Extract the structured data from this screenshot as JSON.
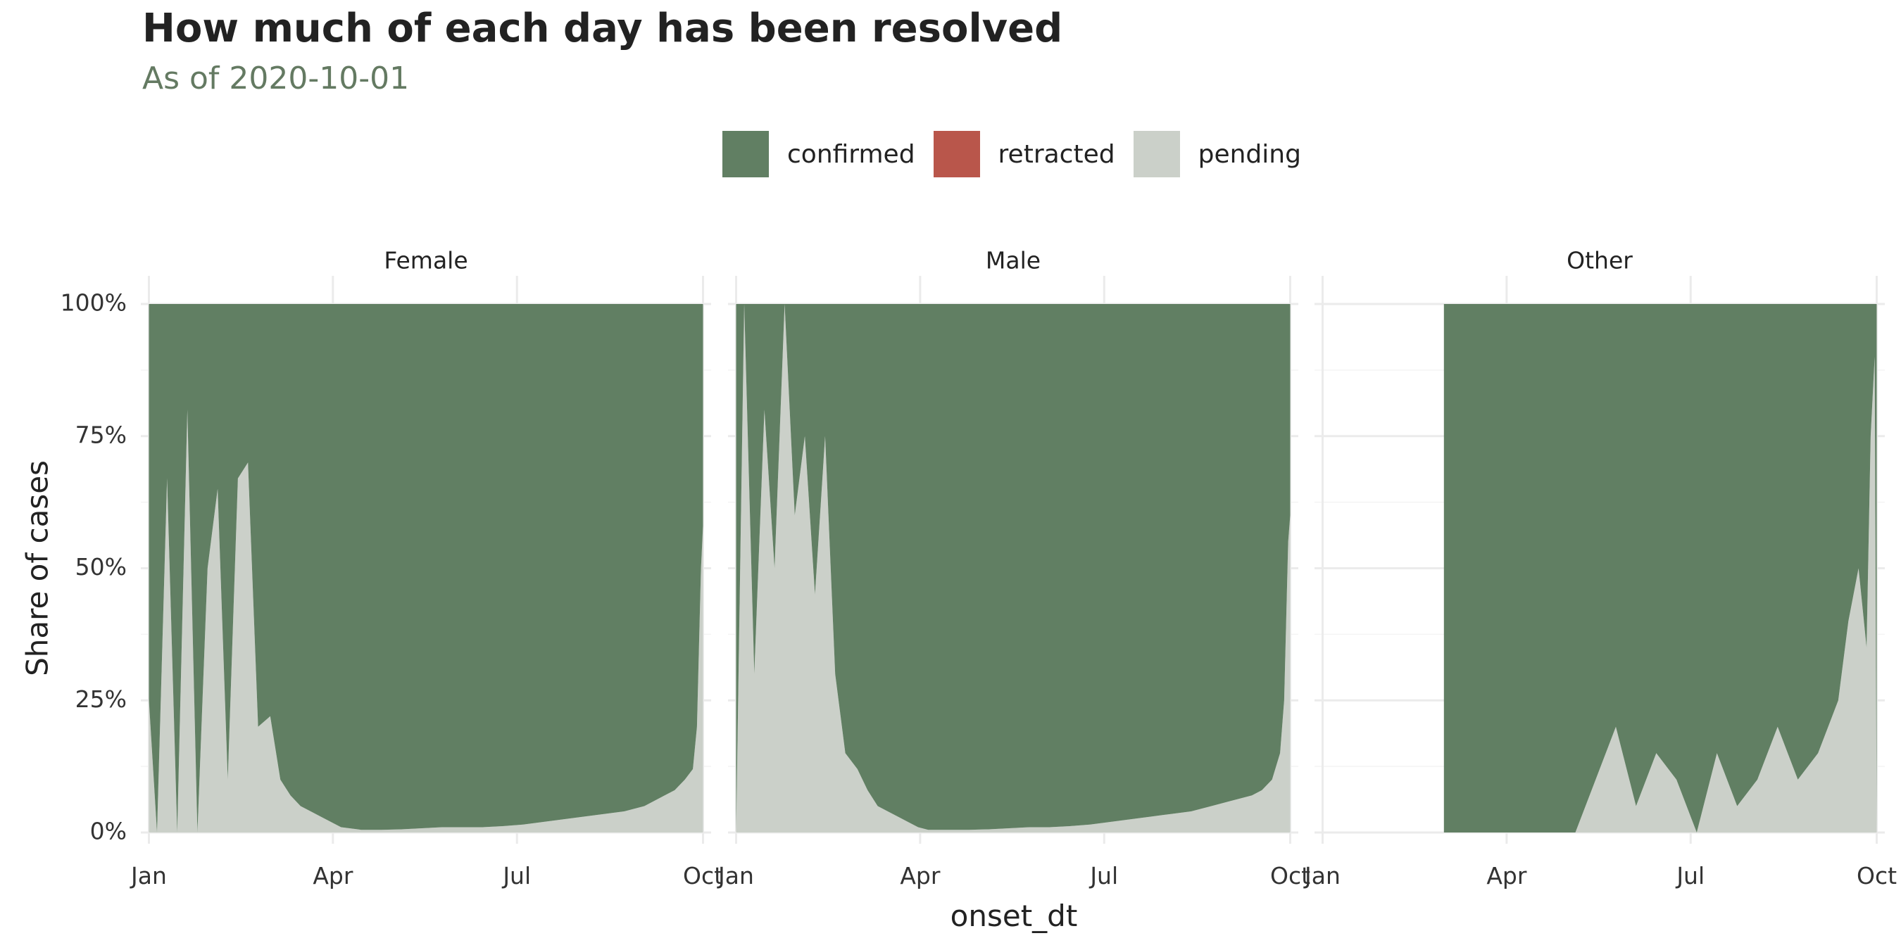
{
  "title": "How much of each day has been resolved",
  "subtitle": "As of 2020-10-01",
  "legend": [
    {
      "label": "confirmed",
      "color": "#617f63"
    },
    {
      "label": "retracted",
      "color": "#b9564b"
    },
    {
      "label": "pending",
      "color": "#cbd0c9"
    }
  ],
  "chart_data": {
    "type": "area",
    "stacked": true,
    "stack_order": [
      "pending",
      "retracted",
      "confirmed"
    ],
    "x_label": "onset_dt",
    "y_label": "Share of cases",
    "x_ticks": [
      "Jan",
      "Apr",
      "Jul",
      "Oct"
    ],
    "y_ticks": [
      "0%",
      "25%",
      "50%",
      "75%",
      "100%"
    ],
    "ylim": [
      0,
      1
    ],
    "xlim": [
      "2019-12-28",
      "2020-10-05"
    ],
    "grid": true,
    "legend_position": "top",
    "x_dates": [
      "2020-01-01",
      "2020-01-05",
      "2020-01-10",
      "2020-01-15",
      "2020-01-20",
      "2020-01-25",
      "2020-01-30",
      "2020-02-04",
      "2020-02-09",
      "2020-02-14",
      "2020-02-19",
      "2020-02-24",
      "2020-03-01",
      "2020-03-06",
      "2020-03-11",
      "2020-03-16",
      "2020-03-21",
      "2020-03-26",
      "2020-03-31",
      "2020-04-05",
      "2020-04-15",
      "2020-04-25",
      "2020-05-05",
      "2020-05-15",
      "2020-05-25",
      "2020-06-04",
      "2020-06-14",
      "2020-06-24",
      "2020-07-04",
      "2020-07-14",
      "2020-07-24",
      "2020-08-03",
      "2020-08-13",
      "2020-08-23",
      "2020-09-02",
      "2020-09-12",
      "2020-09-17",
      "2020-09-22",
      "2020-09-26",
      "2020-09-28",
      "2020-09-30",
      "2020-10-01"
    ],
    "facets": [
      {
        "label": "Female",
        "series": [
          {
            "name": "pending",
            "values": [
              0.25,
              0.0,
              0.67,
              0.0,
              0.8,
              0.0,
              0.5,
              0.65,
              0.1,
              0.67,
              0.7,
              0.2,
              0.22,
              0.1,
              0.07,
              0.05,
              0.04,
              0.03,
              0.02,
              0.01,
              0.005,
              0.005,
              0.006,
              0.008,
              0.01,
              0.01,
              0.01,
              0.012,
              0.015,
              0.02,
              0.025,
              0.03,
              0.035,
              0.04,
              0.05,
              0.07,
              0.08,
              0.1,
              0.12,
              0.2,
              0.5,
              0.58
            ]
          },
          {
            "name": "retracted",
            "values": [
              0,
              0,
              0,
              0,
              0,
              0,
              0,
              0,
              0,
              0,
              0,
              0,
              0,
              0,
              0,
              0,
              0,
              0,
              0,
              0,
              0,
              0,
              0,
              0,
              0,
              0,
              0,
              0,
              0,
              0,
              0,
              0,
              0,
              0,
              0,
              0,
              0,
              0,
              0,
              0,
              0,
              0
            ]
          },
          {
            "name": "confirmed",
            "values": [
              0.75,
              1.0,
              0.33,
              1.0,
              0.2,
              1.0,
              0.5,
              0.35,
              0.9,
              0.33,
              0.3,
              0.8,
              0.78,
              0.9,
              0.93,
              0.95,
              0.96,
              0.97,
              0.98,
              0.99,
              0.995,
              0.995,
              0.994,
              0.992,
              0.99,
              0.99,
              0.99,
              0.988,
              0.985,
              0.98,
              0.975,
              0.97,
              0.965,
              0.96,
              0.95,
              0.93,
              0.92,
              0.9,
              0.88,
              0.8,
              0.5,
              0.42
            ]
          }
        ]
      },
      {
        "label": "Male",
        "series": [
          {
            "name": "pending",
            "values": [
              0.0,
              1.0,
              0.3,
              0.8,
              0.5,
              1.0,
              0.6,
              0.75,
              0.45,
              0.75,
              0.3,
              0.15,
              0.12,
              0.08,
              0.05,
              0.04,
              0.03,
              0.02,
              0.01,
              0.005,
              0.005,
              0.005,
              0.006,
              0.008,
              0.01,
              0.01,
              0.012,
              0.015,
              0.02,
              0.025,
              0.03,
              0.035,
              0.04,
              0.05,
              0.06,
              0.07,
              0.08,
              0.1,
              0.15,
              0.25,
              0.55,
              0.6
            ]
          },
          {
            "name": "retracted",
            "values": [
              0,
              0,
              0,
              0,
              0,
              0,
              0,
              0,
              0,
              0,
              0,
              0,
              0,
              0,
              0,
              0,
              0,
              0,
              0,
              0,
              0,
              0,
              0,
              0,
              0,
              0,
              0,
              0,
              0,
              0,
              0,
              0,
              0,
              0,
              0,
              0,
              0,
              0,
              0,
              0,
              0,
              0
            ]
          },
          {
            "name": "confirmed",
            "values": [
              1.0,
              0.0,
              0.7,
              0.2,
              0.5,
              0.0,
              0.4,
              0.25,
              0.55,
              0.25,
              0.7,
              0.85,
              0.88,
              0.92,
              0.95,
              0.96,
              0.97,
              0.98,
              0.99,
              0.995,
              0.995,
              0.995,
              0.994,
              0.992,
              0.99,
              0.99,
              0.988,
              0.985,
              0.98,
              0.975,
              0.97,
              0.965,
              0.96,
              0.95,
              0.94,
              0.93,
              0.92,
              0.9,
              0.85,
              0.75,
              0.45,
              0.4
            ]
          }
        ]
      },
      {
        "label": "Other",
        "series": [
          {
            "name": "pending",
            "values": [
              null,
              null,
              null,
              null,
              null,
              null,
              null,
              null,
              null,
              null,
              null,
              null,
              0.0,
              0.0,
              0.0,
              0.0,
              0.0,
              0.0,
              0.0,
              0.0,
              0.0,
              0.0,
              0.0,
              0.1,
              0.2,
              0.05,
              0.15,
              0.1,
              0.0,
              0.15,
              0.05,
              0.1,
              0.2,
              0.1,
              0.15,
              0.25,
              0.4,
              0.5,
              0.35,
              0.75,
              0.9,
              0.0
            ]
          },
          {
            "name": "retracted",
            "values": [
              null,
              null,
              null,
              null,
              null,
              null,
              null,
              null,
              null,
              null,
              null,
              null,
              0,
              0,
              0,
              0,
              0,
              0,
              0,
              0,
              0,
              0,
              0,
              0,
              0,
              0,
              0,
              0,
              0,
              0,
              0,
              0,
              0,
              0,
              0,
              0,
              0,
              0,
              0,
              0,
              0,
              0
            ]
          },
          {
            "name": "confirmed",
            "values": [
              null,
              null,
              null,
              null,
              null,
              null,
              null,
              null,
              null,
              null,
              null,
              null,
              1.0,
              1.0,
              1.0,
              1.0,
              1.0,
              1.0,
              1.0,
              1.0,
              1.0,
              1.0,
              1.0,
              0.9,
              0.8,
              0.95,
              0.85,
              0.9,
              1.0,
              0.85,
              0.95,
              0.9,
              0.8,
              0.9,
              0.85,
              0.75,
              0.6,
              0.5,
              0.65,
              0.25,
              0.1,
              1.0
            ]
          }
        ]
      }
    ]
  }
}
